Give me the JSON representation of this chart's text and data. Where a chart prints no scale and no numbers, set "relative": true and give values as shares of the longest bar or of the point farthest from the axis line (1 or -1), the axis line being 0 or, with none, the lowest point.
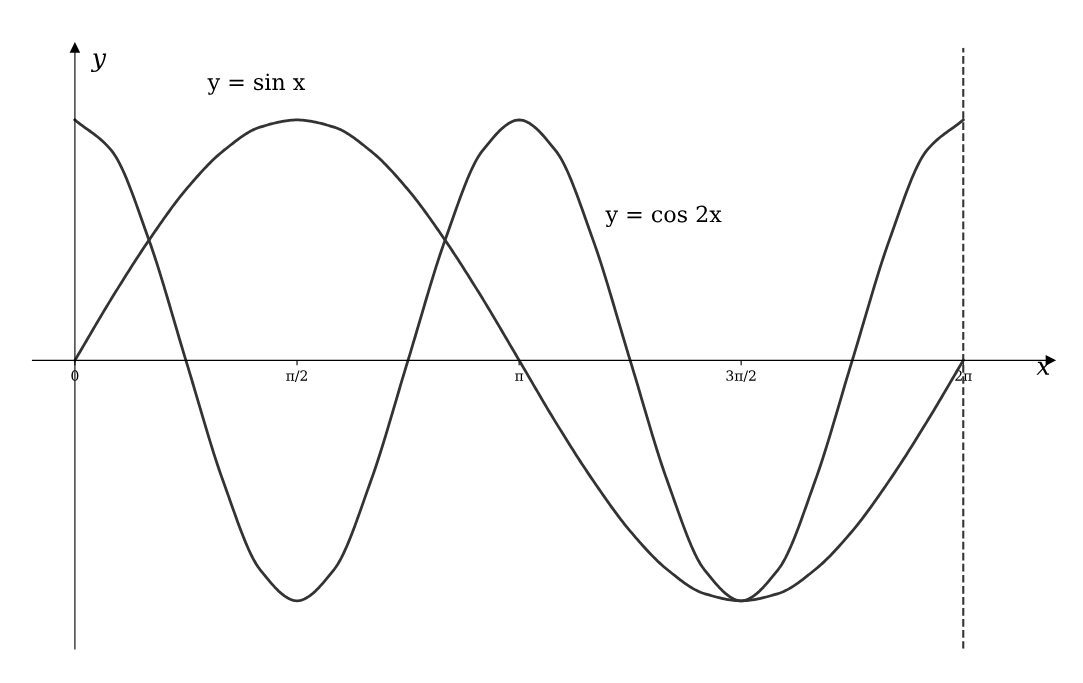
{
  "chart_data": {
    "type": "line",
    "relative": true,
    "xlabel": "x",
    "ylabel": "y",
    "x": [
      0,
      0.262,
      0.524,
      0.785,
      1.047,
      1.309,
      1.571,
      1.833,
      2.094,
      2.356,
      2.618,
      2.88,
      3.142,
      3.403,
      3.665,
      3.927,
      4.189,
      4.451,
      4.712,
      4.974,
      5.236,
      5.498,
      5.76,
      6.021,
      6.283
    ],
    "series": [
      {
        "color": "#333333",
        "values": [
          0,
          0.26,
          0.5,
          0.71,
          0.87,
          0.97,
          1,
          0.97,
          0.87,
          0.71,
          0.5,
          0.26,
          0,
          -0.26,
          -0.5,
          -0.71,
          -0.87,
          -0.97,
          -1,
          -0.97,
          -0.87,
          -0.71,
          -0.5,
          -0.26,
          0
        ]
      },
      {
        "color": "#333333",
        "values": [
          1,
          0.87,
          0.5,
          0,
          -0.5,
          -0.87,
          -1,
          -0.87,
          -0.5,
          0,
          0.5,
          0.87,
          1,
          0.87,
          0.5,
          0,
          -0.5,
          -0.87,
          -1,
          -0.87,
          -0.5,
          0,
          0.5,
          0.87,
          1
        ]
      }
    ],
    "xlim": [
      -0.3,
      6.9
    ],
    "xticks": [
      {
        "value": 0,
        "label": "0"
      },
      {
        "value": 1.571,
        "label": "π/2"
      },
      {
        "value": 3.142,
        "label": "π"
      },
      {
        "value": 4.712,
        "label": "3π/2"
      },
      {
        "value": 6.283,
        "label": "2π"
      }
    ],
    "tick_labels": "x",
    "annotations": [
      "y = sin x",
      "y = cos 2x"
    ],
    "ref_lines": [
      {
        "axis": "x",
        "value": 6.283,
        "line_style": "dashed",
        "color": "#333333"
      }
    ],
    "grid": false,
    "legend": false,
    "marker": "none",
    "line_style": "solid"
  }
}
